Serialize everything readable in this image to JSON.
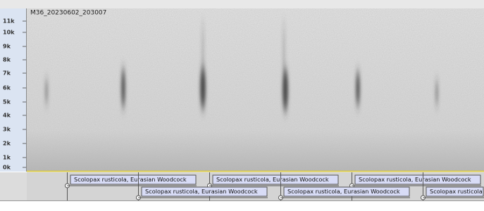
{
  "track": {
    "name": "M36_20230602_203007",
    "ruler_labels": [
      "11k",
      "10k",
      "9k",
      "8k",
      "7k",
      "6k",
      "5k",
      "4k",
      "3k",
      "2k",
      "1k",
      "0k"
    ]
  },
  "labels": {
    "row1": [
      "Scolopax rusticola, Eurasian Woodcock",
      "Scolopax rusticola, Eurasian Woodcock",
      "Scolopax rusticola, Eurasian Woodcock"
    ],
    "row2": [
      "Scolopax rusticola, Eurasian Woodcock",
      "Scolopax rusticola, Eurasian Woodcock",
      "Scolopax rusticola"
    ]
  }
}
